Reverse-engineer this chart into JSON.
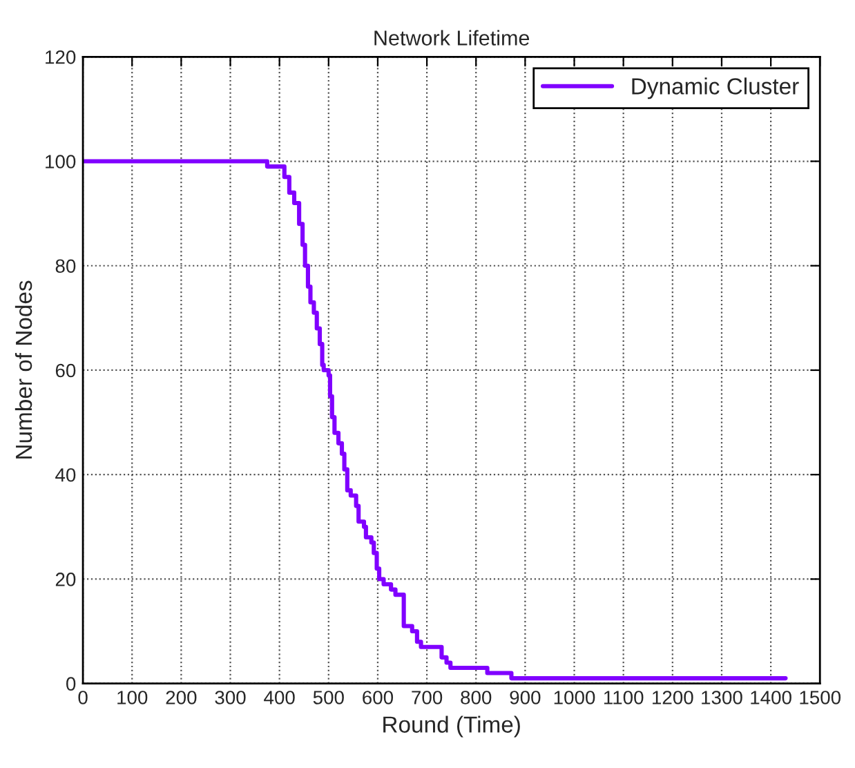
{
  "chart_data": {
    "type": "step",
    "title": "Network Lifetime",
    "xlabel": "Round (Time)",
    "ylabel": "Number of Nodes",
    "series": [
      {
        "name": "Dynamic Cluster",
        "color": "#8000ff",
        "x": [
          0,
          375,
          410,
          420,
          430,
          440,
          447,
          452,
          458,
          463,
          470,
          476,
          482,
          487,
          490,
          500,
          503,
          507,
          512,
          520,
          527,
          532,
          538,
          545,
          556,
          561,
          572,
          576,
          587,
          592,
          598,
          603,
          612,
          627,
          636,
          653,
          670,
          680,
          688,
          730,
          740,
          748,
          823,
          872,
          1430
        ],
        "values": [
          100,
          99,
          97,
          94,
          92,
          88,
          84,
          80,
          76,
          73,
          71,
          68,
          65,
          61,
          60,
          59,
          55,
          51,
          48,
          46,
          44,
          41,
          37,
          36,
          34,
          31,
          30,
          28,
          27,
          25,
          22,
          20,
          19,
          18,
          17,
          11,
          10,
          8,
          7,
          5,
          4,
          3,
          2,
          1,
          1
        ]
      }
    ],
    "xlim": [
      0,
      1500
    ],
    "xticks": [
      0,
      100,
      200,
      300,
      400,
      500,
      600,
      700,
      800,
      900,
      1000,
      1100,
      1200,
      1300,
      1400,
      1500
    ],
    "ylim": [
      0,
      120
    ],
    "yticks": [
      0,
      20,
      40,
      60,
      80,
      100,
      120
    ],
    "grid": true,
    "legend": "top right",
    "line_style": "solid",
    "marker": "none"
  }
}
